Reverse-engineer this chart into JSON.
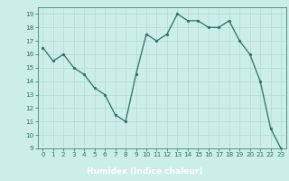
{
  "x": [
    0,
    1,
    2,
    3,
    4,
    5,
    6,
    7,
    8,
    9,
    10,
    11,
    12,
    13,
    14,
    15,
    16,
    17,
    18,
    19,
    20,
    21,
    22,
    23
  ],
  "y": [
    16.5,
    15.5,
    16.0,
    15.0,
    14.5,
    13.5,
    13.0,
    11.5,
    11.0,
    14.5,
    17.5,
    17.0,
    17.5,
    19.0,
    18.5,
    18.5,
    18.0,
    18.0,
    18.5,
    17.0,
    16.0,
    14.0,
    10.5,
    9.0
  ],
  "line_color": "#2d6e63",
  "marker_color": "#2d6e63",
  "bg_color": "#cceee8",
  "grid_color": "#aad4cc",
  "plot_bg": "#cceee8",
  "xlabel": "Humidex (Indice chaleur)",
  "xlabel_color": "#ffffff",
  "xlabel_bg": "#2d6e63",
  "tick_color": "#2d6e63",
  "xlim": [
    -0.5,
    23.5
  ],
  "ylim": [
    9,
    19.5
  ],
  "yticks": [
    9,
    10,
    11,
    12,
    13,
    14,
    15,
    16,
    17,
    18,
    19
  ],
  "xticks": [
    0,
    1,
    2,
    3,
    4,
    5,
    6,
    7,
    8,
    9,
    10,
    11,
    12,
    13,
    14,
    15,
    16,
    17,
    18,
    19,
    20,
    21,
    22,
    23
  ],
  "tick_fontsize": 5.2,
  "xlabel_fontsize": 6.5,
  "marker_size": 2.0,
  "line_width": 0.9
}
